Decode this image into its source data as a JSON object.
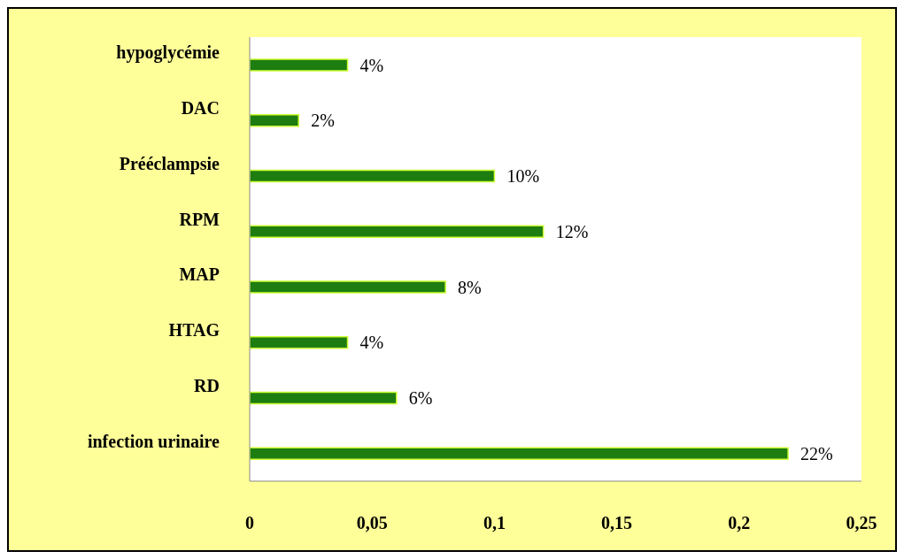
{
  "chart_data": {
    "type": "bar",
    "orientation": "horizontal",
    "categories": [
      "hypoglycémie",
      "DAC",
      "Prééclampsie",
      "RPM",
      "MAP",
      "HTAG",
      "RD",
      "infection urinaire"
    ],
    "values": [
      0.04,
      0.02,
      0.1,
      0.12,
      0.08,
      0.04,
      0.06,
      0.22
    ],
    "value_labels": [
      "4%",
      "2%",
      "10%",
      "12%",
      "8%",
      "4%",
      "6%",
      "22%"
    ],
    "color": "#1e7d10",
    "xlim": [
      0,
      0.25
    ],
    "xticks": [
      0,
      {
        "value": 0.05,
        "label": "0,05"
      },
      {
        "value": 0.1,
        "label": "0,1"
      },
      {
        "value": 0.15,
        "label": "0,15"
      },
      {
        "value": 0.2,
        "label": "0,2"
      },
      {
        "value": 0.25,
        "label": "0,25"
      }
    ],
    "grid": false
  }
}
